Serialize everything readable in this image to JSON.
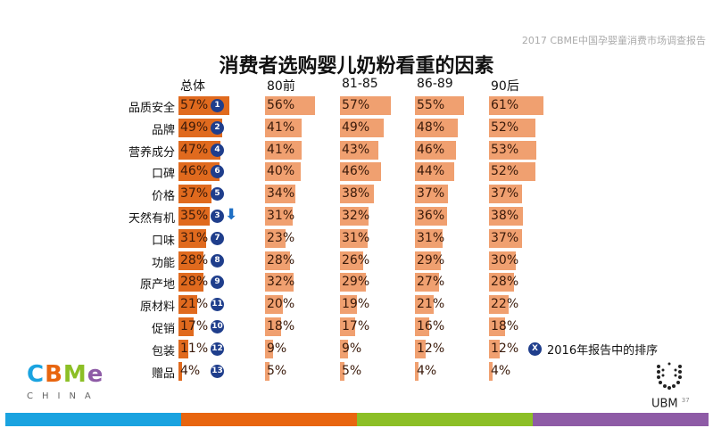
{
  "header": {
    "report": "2017 CBME中国孕婴童消费市场调查报告"
  },
  "chart_data": {
    "type": "bar",
    "title": "消费者选购婴儿奶粉看重的因素",
    "categories": [
      "品质安全",
      "品牌",
      "营养成分",
      "口碑",
      "价格",
      "天然有机",
      "口味",
      "功能",
      "原产地",
      "原材料",
      "促销",
      "包装",
      "赠品"
    ],
    "series": [
      {
        "name": "总体",
        "values": [
          57,
          49,
          47,
          46,
          37,
          35,
          31,
          28,
          28,
          21,
          17,
          11,
          4
        ],
        "color": "#e06a1e"
      },
      {
        "name": "80前",
        "values": [
          56,
          41,
          41,
          40,
          34,
          31,
          23,
          28,
          32,
          20,
          18,
          9,
          5
        ],
        "color": "#f0a070"
      },
      {
        "name": "81-85",
        "values": [
          57,
          49,
          43,
          46,
          38,
          32,
          31,
          26,
          29,
          19,
          17,
          9,
          5
        ],
        "color": "#f0a070"
      },
      {
        "name": "86-89",
        "values": [
          55,
          48,
          46,
          44,
          37,
          36,
          31,
          29,
          27,
          21,
          16,
          12,
          4
        ],
        "color": "#f0a070"
      },
      {
        "name": "90后",
        "values": [
          61,
          52,
          53,
          52,
          37,
          38,
          37,
          30,
          28,
          22,
          18,
          12,
          4
        ],
        "color": "#f0a070"
      }
    ],
    "rank_2016": [
      "1",
      "2",
      "4",
      "6",
      "5",
      "3",
      "7",
      "8",
      "9",
      "11",
      "10",
      "12",
      "13"
    ],
    "rank_down_marker": "天然有机",
    "legend": {
      "badge": "X",
      "text": "2016年报告中的排序"
    }
  },
  "logos": {
    "left": "CBME",
    "left_sub": "CHINA",
    "right": "UBM"
  },
  "page_number": "37",
  "stripes": [
    "#1aa3e0",
    "#e8650f",
    "#8cbf26",
    "#8e5ba6"
  ]
}
